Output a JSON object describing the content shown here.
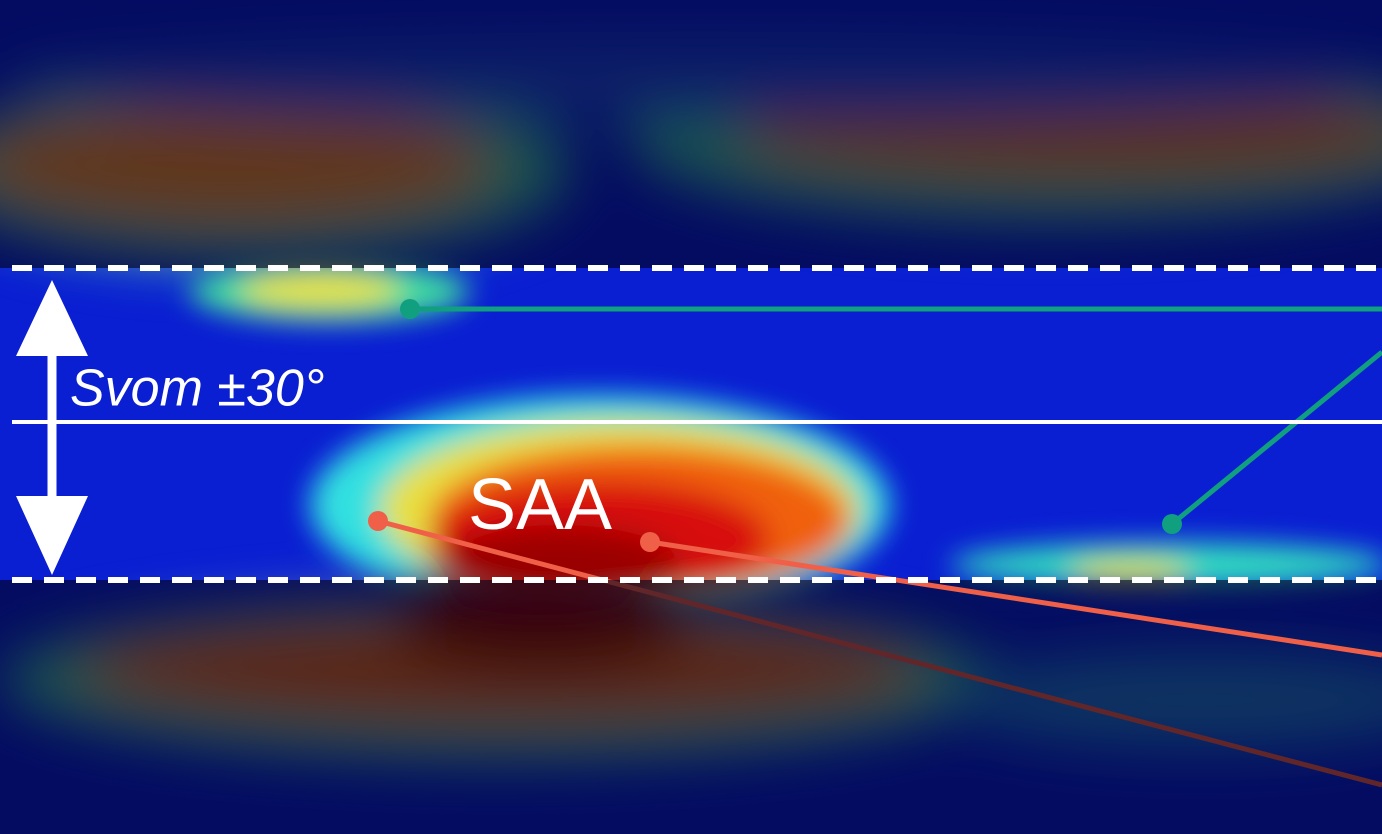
{
  "annotations": {
    "band_label": "Svom ±30°",
    "region_label": "SAA"
  }
}
